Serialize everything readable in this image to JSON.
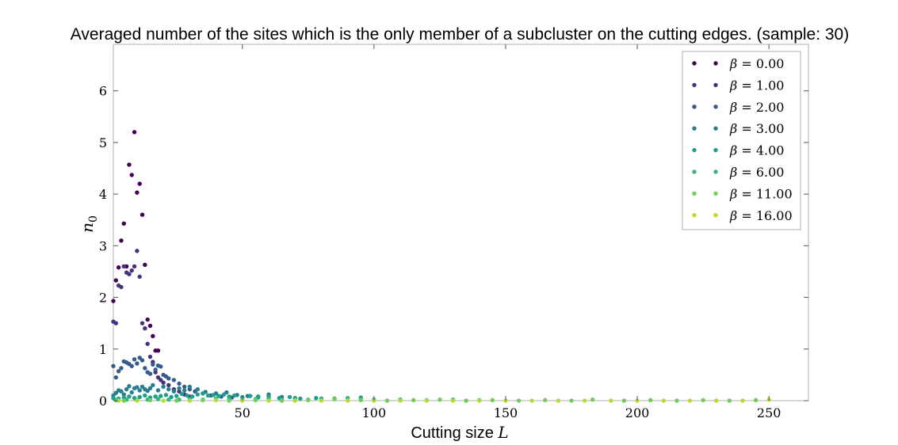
{
  "chart_data": {
    "type": "scatter",
    "title": "Averaged number of the sites which is the only member of a subcluster on the cutting edges. (sample: 30)",
    "xlabel_text": "Cutting size ",
    "xlabel_var": "L",
    "ylabel": "n",
    "ylabel_sub": "0",
    "xlim": [
      1,
      265
    ],
    "ylim": [
      0,
      6.9
    ],
    "xticks": [
      "50",
      "100",
      "150",
      "200",
      "250"
    ],
    "yticks": [
      "0",
      "1",
      "2",
      "3",
      "4",
      "5",
      "6"
    ],
    "grid": false,
    "legend_position": "top-right",
    "legend_symbol": "β",
    "legend_eq": " = ",
    "series": [
      {
        "name": "0.00",
        "color": "#440154",
        "x": [
          1,
          2,
          3,
          4,
          5,
          6,
          7,
          8,
          9,
          10,
          11,
          12,
          13,
          14,
          15,
          16,
          17,
          18
        ],
        "y": [
          1.93,
          2.33,
          2.58,
          3.1,
          3.43,
          2.6,
          4.57,
          4.37,
          5.2,
          4.03,
          4.2,
          3.6,
          2.63,
          1.57,
          1.45,
          1.25,
          0.97,
          0.97
        ]
      },
      {
        "name": "1.00",
        "color": "#46327e",
        "x": [
          1,
          2,
          3,
          4,
          5,
          6,
          7,
          8,
          9,
          10,
          11,
          12,
          13,
          14,
          15,
          16,
          17,
          18,
          19,
          20,
          22,
          24,
          26,
          28,
          30
        ],
        "y": [
          1.53,
          1.5,
          2.23,
          2.2,
          2.6,
          2.48,
          2.45,
          2.52,
          2.6,
          2.9,
          2.4,
          1.5,
          1.4,
          1.1,
          0.85,
          0.75,
          0.55,
          0.45,
          0.4,
          0.35,
          0.3,
          0.22,
          0.18,
          0.12,
          0.08
        ]
      },
      {
        "name": "2.00",
        "color": "#365c8d",
        "x": [
          1,
          2,
          3,
          4,
          5,
          6,
          7,
          8,
          9,
          10,
          11,
          12,
          13,
          14,
          15,
          16,
          17,
          18,
          19,
          20,
          21,
          22,
          24,
          26,
          28,
          30,
          32,
          35,
          38,
          42,
          46
        ],
        "y": [
          0.67,
          0.45,
          0.57,
          0.63,
          0.76,
          0.74,
          0.71,
          0.67,
          0.8,
          0.72,
          0.83,
          0.78,
          0.63,
          0.55,
          0.52,
          0.7,
          0.6,
          0.68,
          0.66,
          0.5,
          0.47,
          0.43,
          0.4,
          0.33,
          0.27,
          0.22,
          0.18,
          0.14,
          0.1,
          0.08,
          0.06
        ]
      },
      {
        "name": "3.00",
        "color": "#277f8e",
        "x": [
          1,
          2,
          3,
          4,
          5,
          6,
          7,
          8,
          9,
          10,
          11,
          12,
          13,
          14,
          15,
          16,
          18,
          20,
          22,
          24,
          26,
          28,
          30,
          33,
          36,
          40,
          44,
          48,
          52,
          56,
          60,
          65,
          70,
          80
        ],
        "y": [
          0.1,
          0.15,
          0.2,
          0.18,
          0.12,
          0.22,
          0.28,
          0.16,
          0.24,
          0.26,
          0.2,
          0.27,
          0.22,
          0.19,
          0.24,
          0.3,
          0.2,
          0.27,
          0.22,
          0.18,
          0.24,
          0.2,
          0.27,
          0.22,
          0.17,
          0.14,
          0.16,
          0.11,
          0.09,
          0.08,
          0.12,
          0.07,
          0.05,
          0.04
        ]
      },
      {
        "name": "4.00",
        "color": "#1f9e89",
        "x": [
          1,
          3,
          5,
          7,
          9,
          11,
          13,
          15,
          17,
          19,
          21,
          23,
          25,
          27,
          29,
          31,
          33,
          35,
          37,
          39,
          41,
          43,
          45,
          47,
          50,
          53,
          56,
          60,
          64,
          68,
          72,
          78,
          85,
          95
        ],
        "y": [
          0.05,
          0.04,
          0.06,
          0.08,
          0.05,
          0.07,
          0.1,
          0.06,
          0.08,
          0.09,
          0.11,
          0.07,
          0.09,
          0.13,
          0.1,
          0.08,
          0.12,
          0.14,
          0.1,
          0.11,
          0.09,
          0.12,
          0.08,
          0.1,
          0.07,
          0.09,
          0.06,
          0.08,
          0.05,
          0.07,
          0.04,
          0.05,
          0.04,
          0.06
        ]
      },
      {
        "name": "6.00",
        "color": "#35b779",
        "x": [
          2,
          6,
          10,
          14,
          18,
          22,
          26,
          30,
          35,
          40,
          45,
          50,
          55,
          60,
          65,
          70,
          75,
          80,
          85,
          90,
          95,
          100,
          110,
          120,
          130,
          140
        ],
        "y": [
          0.01,
          0.02,
          0.01,
          0.02,
          0.03,
          0.02,
          0.02,
          0.03,
          0.02,
          0.04,
          0.03,
          0.02,
          0.03,
          0.04,
          0.02,
          0.03,
          0.02,
          0.03,
          0.04,
          0.05,
          0.03,
          0.02,
          0.02,
          0.01,
          0.02,
          0.01
        ]
      },
      {
        "name": "11.00",
        "color": "#6ece58",
        "x": [
          5,
          15,
          25,
          35,
          45,
          55,
          65,
          75,
          85,
          95,
          105,
          115,
          125,
          135,
          145,
          155,
          165,
          175,
          183,
          195,
          205,
          215,
          225,
          235,
          245
        ],
        "y": [
          0.0,
          0.01,
          0.0,
          0.01,
          0.0,
          0.01,
          0.0,
          0.01,
          0.03,
          0.01,
          0.0,
          0.01,
          0.02,
          0.0,
          0.01,
          0.0,
          0.01,
          0.0,
          0.02,
          0.0,
          0.01,
          0.0,
          0.01,
          0.0,
          0.01
        ]
      },
      {
        "name": "16.00",
        "color": "#b5de2b",
        "x": [
          3,
          10,
          20,
          30,
          40,
          50,
          60,
          70,
          80,
          90,
          100,
          110,
          120,
          130,
          140,
          150,
          160,
          170,
          180,
          190,
          200,
          210,
          220,
          230,
          240,
          250
        ],
        "y": [
          0.0,
          0.0,
          0.0,
          0.0,
          0.01,
          0.0,
          0.0,
          0.0,
          0.0,
          0.0,
          0.0,
          0.0,
          0.0,
          0.0,
          0.0,
          0.0,
          0.0,
          0.0,
          0.0,
          0.0,
          0.0,
          0.0,
          0.0,
          0.0,
          0.0,
          0.02
        ]
      }
    ]
  }
}
